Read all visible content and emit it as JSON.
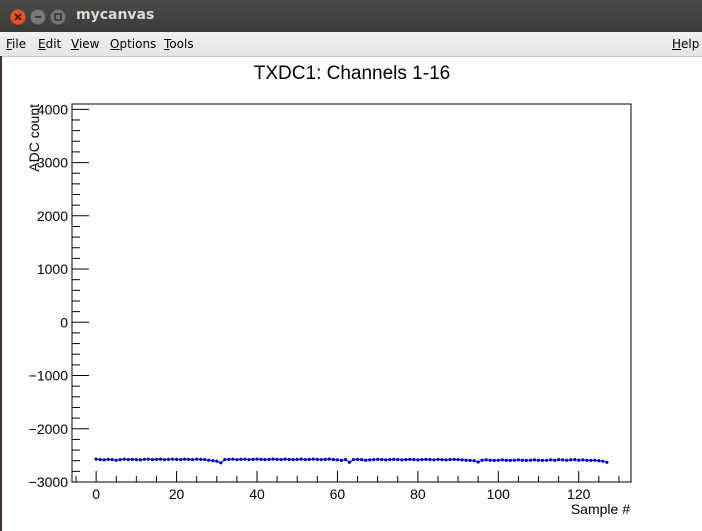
{
  "window": {
    "title": "mycanvas",
    "controls": [
      "close-icon",
      "minimize-icon",
      "maximize-icon"
    ],
    "close_color": "#e4572e"
  },
  "menubar": {
    "items": [
      {
        "label": "File",
        "mnemonic": "F",
        "rest": "ile"
      },
      {
        "label": "Edit",
        "mnemonic": "E",
        "rest": "dit"
      },
      {
        "label": "View",
        "mnemonic": "V",
        "rest": "iew"
      },
      {
        "label": "Options",
        "mnemonic": "O",
        "rest": "ptions"
      },
      {
        "label": "Tools",
        "mnemonic": "T",
        "rest": "ools"
      }
    ],
    "help": {
      "label": "Help",
      "mnemonic": "H",
      "rest": "elp"
    }
  },
  "chart_data": {
    "type": "scatter",
    "title": "TXDC1: Channels 1-16",
    "xlabel": "Sample #",
    "ylabel": "ADC count",
    "xlim": [
      -6,
      133
    ],
    "ylim": [
      -3000,
      4100
    ],
    "x_ticks": [
      0,
      20,
      40,
      60,
      80,
      100,
      120
    ],
    "y_ticks": [
      -3000,
      -2000,
      -1000,
      0,
      1000,
      2000,
      3000,
      4000
    ],
    "y_tick_labels": [
      "−3000",
      "−2000",
      "−1000",
      "0",
      "1000",
      "2000",
      "3000",
      "4000"
    ],
    "marker_color": "#0000cc",
    "series": [
      {
        "x": [
          0,
          1,
          2,
          3,
          4,
          5,
          6,
          7,
          8,
          9,
          10,
          11,
          12,
          13,
          14,
          15,
          16,
          17,
          18,
          19,
          20,
          21,
          22,
          23,
          24,
          25,
          26,
          27,
          28,
          29,
          30,
          31,
          32,
          33,
          34,
          35,
          36,
          37,
          38,
          39,
          40,
          41,
          42,
          43,
          44,
          45,
          46,
          47,
          48,
          49,
          50,
          51,
          52,
          53,
          54,
          55,
          56,
          57,
          58,
          59,
          60,
          61,
          62,
          63,
          64,
          65,
          66,
          67,
          68,
          69,
          70,
          71,
          72,
          73,
          74,
          75,
          76,
          77,
          78,
          79,
          80,
          81,
          82,
          83,
          84,
          85,
          86,
          87,
          88,
          89,
          90,
          91,
          92,
          93,
          94,
          95,
          96,
          97,
          98,
          99,
          100,
          101,
          102,
          103,
          104,
          105,
          106,
          107,
          108,
          109,
          110,
          111,
          112,
          113,
          114,
          115,
          116,
          117,
          118,
          119,
          120,
          121,
          122,
          123,
          124,
          125,
          126,
          127
        ],
        "y": [
          -2570,
          -2580,
          -2585,
          -2575,
          -2580,
          -2590,
          -2580,
          -2570,
          -2580,
          -2575,
          -2580,
          -2585,
          -2575,
          -2570,
          -2580,
          -2575,
          -2570,
          -2580,
          -2575,
          -2570,
          -2575,
          -2580,
          -2570,
          -2575,
          -2580,
          -2570,
          -2575,
          -2580,
          -2590,
          -2600,
          -2610,
          -2640,
          -2580,
          -2575,
          -2570,
          -2580,
          -2575,
          -2570,
          -2580,
          -2575,
          -2570,
          -2575,
          -2580,
          -2575,
          -2570,
          -2575,
          -2580,
          -2570,
          -2575,
          -2580,
          -2575,
          -2570,
          -2580,
          -2575,
          -2570,
          -2575,
          -2580,
          -2575,
          -2570,
          -2580,
          -2585,
          -2595,
          -2580,
          -2630,
          -2580,
          -2575,
          -2580,
          -2590,
          -2585,
          -2580,
          -2575,
          -2580,
          -2585,
          -2580,
          -2575,
          -2580,
          -2585,
          -2580,
          -2575,
          -2580,
          -2585,
          -2580,
          -2575,
          -2580,
          -2585,
          -2575,
          -2580,
          -2585,
          -2580,
          -2575,
          -2580,
          -2585,
          -2590,
          -2595,
          -2600,
          -2625,
          -2590,
          -2585,
          -2590,
          -2595,
          -2590,
          -2585,
          -2590,
          -2595,
          -2590,
          -2585,
          -2590,
          -2595,
          -2590,
          -2585,
          -2590,
          -2595,
          -2590,
          -2585,
          -2590,
          -2580,
          -2585,
          -2590,
          -2585,
          -2580,
          -2590,
          -2585,
          -2590,
          -2595,
          -2590,
          -2600,
          -2610,
          -2630
        ]
      }
    ]
  }
}
